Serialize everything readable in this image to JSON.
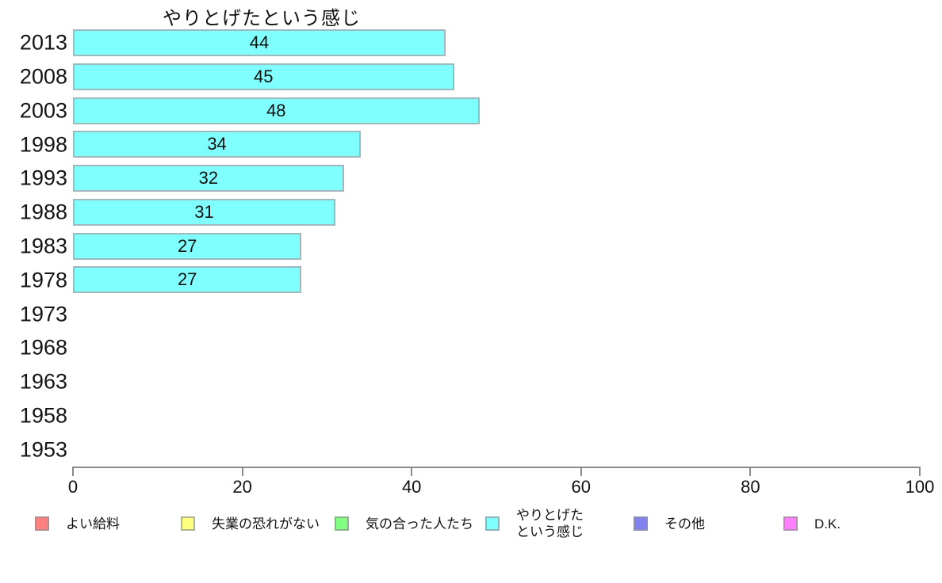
{
  "chart": {
    "title": "やりとげたという感じ"
  },
  "chart_data": {
    "type": "bar",
    "orientation": "horizontal",
    "title": "やりとげたという感じ",
    "categories": [
      "2013",
      "2008",
      "2003",
      "1998",
      "1993",
      "1988",
      "1983",
      "1978",
      "1973",
      "1968",
      "1963",
      "1958",
      "1953"
    ],
    "values": [
      44,
      45,
      48,
      34,
      32,
      31,
      27,
      27,
      null,
      null,
      null,
      null,
      null
    ],
    "xlabel": "",
    "ylabel": "",
    "xlim": [
      0,
      100
    ],
    "xticks": [
      0,
      20,
      40,
      60,
      80,
      100
    ],
    "grid": false,
    "bar_fill_color": "#80ffff",
    "bar_border_color": "#9fb8bc",
    "axis_color": "#8a8a8a",
    "legend_position": "bottom",
    "legend": [
      {
        "label": "よい給料",
        "color": "#ff8080",
        "border": "#b48c8c"
      },
      {
        "label": "失業の恐れがない",
        "color": "#ffff80",
        "border": "#b4b48c"
      },
      {
        "label": "気の合った人たち",
        "color": "#80ff80",
        "border": "#8cb48c"
      },
      {
        "label": "やりとげた\nという感じ",
        "color": "#80ffff",
        "border": "#8cb4b4"
      },
      {
        "label": "その他",
        "color": "#8080f0",
        "border": "#8c8cb4"
      },
      {
        "label": "D.K.",
        "color": "#ff80ff",
        "border": "#b48cb4"
      }
    ]
  }
}
